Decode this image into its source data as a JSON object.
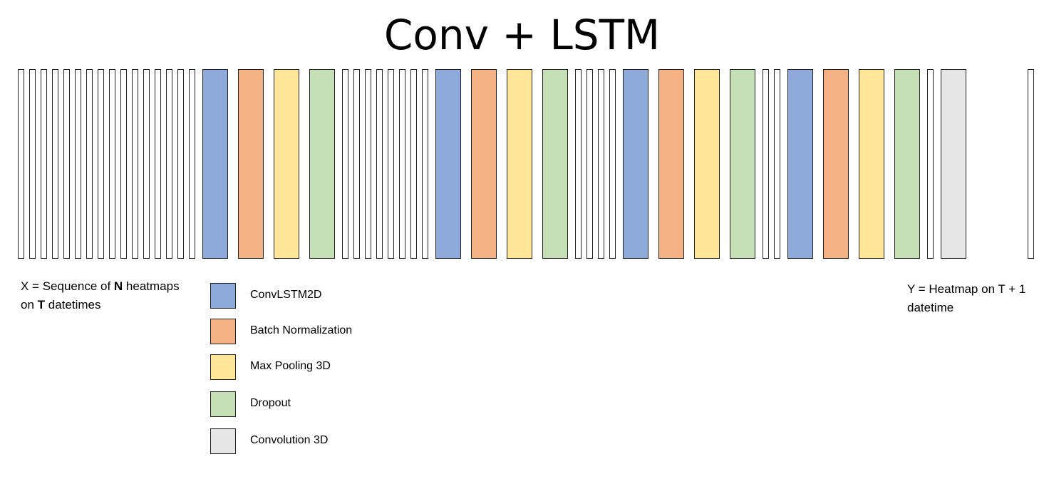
{
  "title": "Conv + LSTM",
  "input_label": {
    "line1": {
      "pre": "X = Sequence of ",
      "bold": "N",
      "post": " heatmaps"
    },
    "line2": {
      "pre": "on ",
      "bold": "T",
      "post": " datetimes"
    }
  },
  "output_label": {
    "line1": "Y = Heatmap on T + 1",
    "line2": "datetime"
  },
  "layer_types": {
    "convlstm2d": {
      "label": "ConvLSTM2D",
      "color": "#8eaadb"
    },
    "batchnorm": {
      "label": "Batch Normalization",
      "color": "#f4b183"
    },
    "maxpool3d": {
      "label": "Max Pooling 3D",
      "color": "#ffe699"
    },
    "dropout": {
      "label": "Dropout",
      "color": "#c5e0b4"
    },
    "convolution3d": {
      "label": "Convolution 3D",
      "color": "#e7e6e6"
    }
  },
  "legend": [
    "convlstm2d",
    "batchnorm",
    "maxpool3d",
    "dropout",
    "convolution3d"
  ],
  "sequence": [
    {
      "kind": "input"
    },
    {
      "kind": "block"
    },
    {
      "kind": "thin",
      "count": 8
    },
    {
      "kind": "block"
    },
    {
      "kind": "thin",
      "count": 4
    },
    {
      "kind": "block"
    },
    {
      "kind": "thin",
      "count": 2
    },
    {
      "kind": "block"
    },
    {
      "kind": "thin",
      "count": 1
    },
    {
      "kind": "layer",
      "type": "convolution3d"
    },
    {
      "kind": "output"
    }
  ],
  "block_layers": [
    "convlstm2d",
    "batchnorm",
    "maxpool3d",
    "dropout"
  ],
  "input_frames": 16
}
